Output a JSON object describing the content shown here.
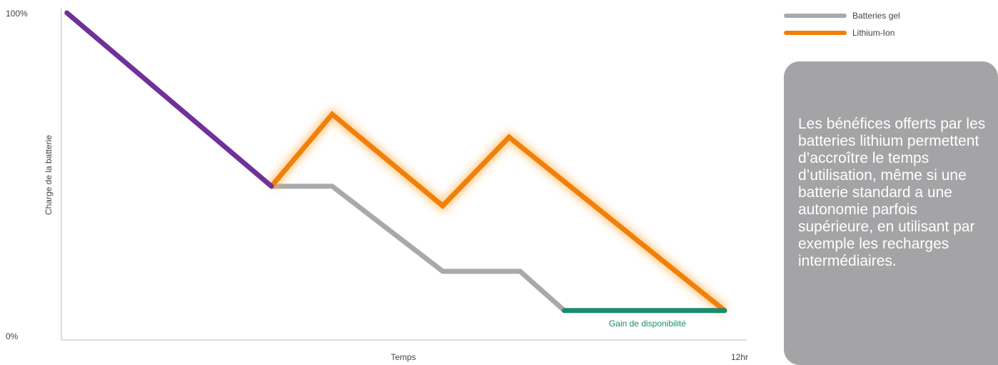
{
  "chart_data": {
    "type": "line",
    "xlabel": "Temps",
    "ylabel": "Charge de la batterie",
    "y_ticks": [
      "100%",
      "0%"
    ],
    "x_ticks": [
      "12hr"
    ],
    "xlim": [
      0,
      12
    ],
    "ylim": [
      0,
      100
    ],
    "series": [
      {
        "name": "Batteries gel",
        "color": "#a8a9ad",
        "x": [
          3.8,
          4.9,
          6.9,
          8.3,
          9.1
        ],
        "y": [
          47,
          47,
          21,
          21,
          9
        ]
      },
      {
        "name": "Lithium-Ion",
        "color": "#f08009",
        "x": [
          3.8,
          4.9,
          6.9,
          8.1,
          12
        ],
        "y": [
          47,
          69,
          41,
          62,
          9
        ]
      },
      {
        "color": "#70319a",
        "x": [
          0.1,
          3.8
        ],
        "y": [
          100,
          47
        ]
      },
      {
        "color": "#1b8b6d",
        "x": [
          9.1,
          12
        ],
        "y": [
          9,
          9
        ]
      }
    ],
    "annotations": [
      "Gain de disponibilité"
    ],
    "legend_placement": "top-right",
    "grid": false
  },
  "legend": {
    "items": [
      {
        "label": "Batteries gel",
        "color": "#a8a9ad"
      },
      {
        "label": "Lithium-Ion",
        "color": "#f08009"
      }
    ]
  },
  "note": {
    "text": "Les bénéfices offerts par les batteries lithium permettent d’accroître le temps d’utilisation, même si une batterie standard a une autonomie parfois supérieure, en utilisant par exemple les recharges intermédiaires.",
    "background": "#a4a4a6"
  }
}
